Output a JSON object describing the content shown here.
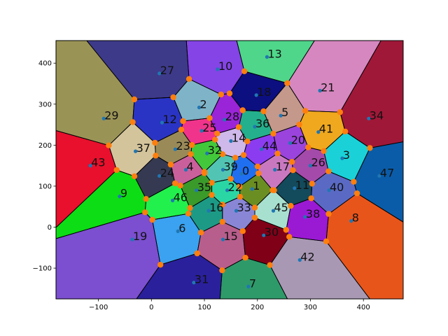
{
  "chart_data": {
    "type": "scatter",
    "subtype": "voronoi-clustering",
    "title": "",
    "xlabel": "",
    "ylabel": "",
    "xlim": [
      -180,
      475
    ],
    "ylim": [
      -175,
      455
    ],
    "xticks": [
      -100,
      0,
      100,
      200,
      300,
      400
    ],
    "xtick_labels": [
      "−100",
      "0",
      "100",
      "200",
      "300",
      "400"
    ],
    "yticks": [
      -100,
      0,
      100,
      200,
      300,
      400
    ],
    "ytick_labels": [
      "−100",
      "0",
      "100",
      "200",
      "300",
      "400"
    ],
    "grid": false,
    "centroid_color": "#1f77b4",
    "vertex_color": "#ff7f0e",
    "edge_color": "#000000",
    "regions": [
      {
        "id": "0",
        "x": 170,
        "y": 130,
        "color": "#1f6ff0"
      },
      {
        "id": "1",
        "x": 190,
        "y": 93,
        "color": "#6b8e23"
      },
      {
        "id": "2",
        "x": 90,
        "y": 292,
        "color": "#7fb3c8"
      },
      {
        "id": "3",
        "x": 360,
        "y": 168,
        "color": "#1ad1d8"
      },
      {
        "id": "4",
        "x": 65,
        "y": 140,
        "color": "#c9609c"
      },
      {
        "id": "5",
        "x": 244,
        "y": 272,
        "color": "#c4988a"
      },
      {
        "id": "6",
        "x": 50,
        "y": -10,
        "color": "#3aa2f0"
      },
      {
        "id": "7",
        "x": 183,
        "y": -145,
        "color": "#2e9a6a"
      },
      {
        "id": "8",
        "x": 377,
        "y": 15,
        "color": "#e8551a"
      },
      {
        "id": "9",
        "x": -60,
        "y": 75,
        "color": "#0ddd14"
      },
      {
        "id": "10",
        "x": 125,
        "y": 385,
        "color": "#8444e6"
      },
      {
        "id": "11",
        "x": 270,
        "y": 95,
        "color": "#134a5c"
      },
      {
        "id": "12",
        "x": 20,
        "y": 255,
        "color": "#2a34c4"
      },
      {
        "id": "13",
        "x": 218,
        "y": 415,
        "color": "#4fd68a"
      },
      {
        "id": "14",
        "x": 150,
        "y": 210,
        "color": "#cfb8ea"
      },
      {
        "id": "15",
        "x": 135,
        "y": -30,
        "color": "#b85e8c"
      },
      {
        "id": "16",
        "x": 108,
        "y": 40,
        "color": "#1c9a86"
      },
      {
        "id": "17",
        "x": 233,
        "y": 140,
        "color": "#c978c0"
      },
      {
        "id": "18",
        "x": 198,
        "y": 322,
        "color": "#0c0f80"
      },
      {
        "id": "19",
        "x": -36,
        "y": -30,
        "color": "#7b4fcf"
      },
      {
        "id": "20",
        "x": 262,
        "y": 205,
        "color": "#9a43dd"
      },
      {
        "id": "21",
        "x": 318,
        "y": 333,
        "color": "#d687bf"
      },
      {
        "id": "22",
        "x": 143,
        "y": 90,
        "color": "#2ad7a4"
      },
      {
        "id": "23",
        "x": 45,
        "y": 190,
        "color": "#9a8a58"
      },
      {
        "id": "24",
        "x": 15,
        "y": 125,
        "color": "#353a52"
      },
      {
        "id": "25",
        "x": 95,
        "y": 235,
        "color": "#f0348c"
      },
      {
        "id": "26",
        "x": 300,
        "y": 150,
        "color": "#a44aaa"
      },
      {
        "id": "27",
        "x": 15,
        "y": 375,
        "color": "#3d3a8a"
      },
      {
        "id": "28",
        "x": 138,
        "y": 262,
        "color": "#9a24d8"
      },
      {
        "id": "29",
        "x": -90,
        "y": 265,
        "color": "#9a9356"
      },
      {
        "id": "30",
        "x": 212,
        "y": -20,
        "color": "#800018"
      },
      {
        "id": "31",
        "x": 80,
        "y": -135,
        "color": "#2a209c"
      },
      {
        "id": "32",
        "x": 105,
        "y": 180,
        "color": "#42c83a"
      },
      {
        "id": "33",
        "x": 160,
        "y": 40,
        "color": "#8a86d6"
      },
      {
        "id": "34",
        "x": 410,
        "y": 265,
        "color": "#a01838"
      },
      {
        "id": "35",
        "x": 85,
        "y": 90,
        "color": "#3a9a2a"
      },
      {
        "id": "36",
        "x": 195,
        "y": 245,
        "color": "#24b08c"
      },
      {
        "id": "37",
        "x": -30,
        "y": 185,
        "color": "#d4c49c"
      },
      {
        "id": "38",
        "x": 290,
        "y": 25,
        "color": "#9a1ad4"
      },
      {
        "id": "39",
        "x": 135,
        "y": 140,
        "color": "#52c4b4"
      },
      {
        "id": "40",
        "x": 335,
        "y": 90,
        "color": "#5a6ac4"
      },
      {
        "id": "41",
        "x": 315,
        "y": 232,
        "color": "#f0a81e"
      },
      {
        "id": "42",
        "x": 280,
        "y": -80,
        "color": "#a898b4"
      },
      {
        "id": "43",
        "x": -115,
        "y": 150,
        "color": "#e8102c"
      },
      {
        "id": "44",
        "x": 208,
        "y": 190,
        "color": "#8c3cf0"
      },
      {
        "id": "45",
        "x": 230,
        "y": 40,
        "color": "#a8e0d0"
      },
      {
        "id": "46",
        "x": 40,
        "y": 65,
        "color": "#22f04c"
      },
      {
        "id": "47",
        "x": 430,
        "y": 125,
        "color": "#0a5ca8"
      }
    ]
  }
}
